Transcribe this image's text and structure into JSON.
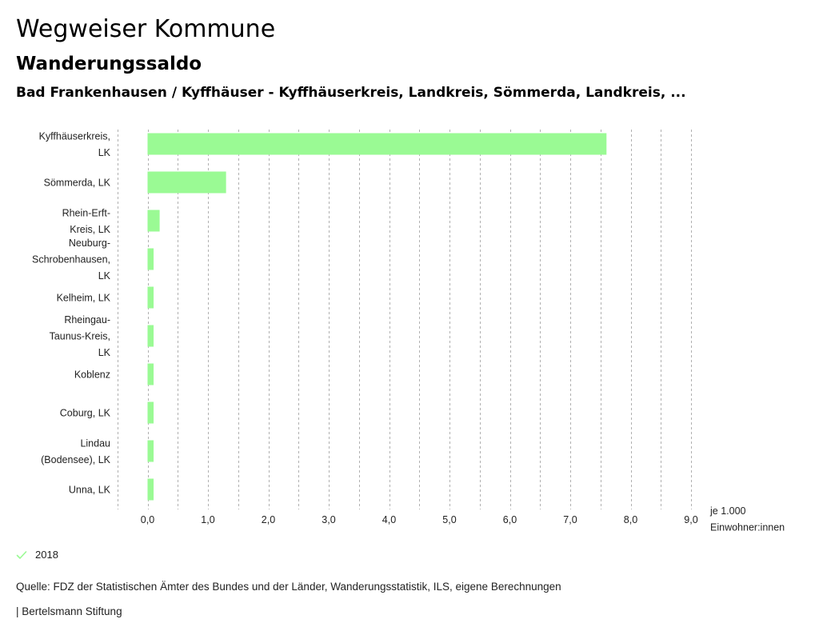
{
  "header": {
    "title": "Wegweiser Kommune",
    "subtitle": "Wanderungssaldo",
    "region": "Bad Frankenhausen / Kyffhäuser - Kyffhäuserkreis, Landkreis, Sömmerda, Landkreis, ..."
  },
  "colors": {
    "bar": "#9afa94",
    "grid": "#b0b0b0",
    "check": "#9afa94"
  },
  "chart_data": {
    "type": "bar",
    "orientation": "horizontal",
    "title": "Wanderungssaldo",
    "categories": [
      [
        "Kyffhäuserkreis,",
        "LK"
      ],
      [
        "Sömmerda, LK"
      ],
      [
        "Rhein-Erft-",
        "Kreis, LK"
      ],
      [
        "Neuburg-",
        "Schrobenhausen,",
        "LK"
      ],
      [
        "Kelheim, LK"
      ],
      [
        "Rheingau-",
        "Taunus-Kreis,",
        "LK"
      ],
      [
        "Koblenz"
      ],
      [
        "Coburg, LK"
      ],
      [
        "Lindau",
        "(Bodensee), LK"
      ],
      [
        "Unna, LK"
      ]
    ],
    "series": [
      {
        "name": "2018",
        "values": [
          7.6,
          1.3,
          0.2,
          0.1,
          0.1,
          0.1,
          0.1,
          0.1,
          0.1,
          0.1
        ]
      }
    ],
    "xlim": [
      -0.5,
      9.0
    ],
    "xticks": [
      0,
      1,
      2,
      3,
      4,
      5,
      6,
      7,
      8,
      9
    ],
    "xtick_labels": [
      "0,0",
      "1,0",
      "2,0",
      "3,0",
      "4,0",
      "5,0",
      "6,0",
      "7,0",
      "8,0",
      "9,0"
    ],
    "grid_step": 0.5,
    "grid": true,
    "xlabel": [
      "je 1.000",
      "Einwohner:innen"
    ],
    "ylabel": "",
    "legend_position": "bottom-left"
  },
  "legend": {
    "items": [
      {
        "label": "2018",
        "icon": "check-icon"
      }
    ]
  },
  "footer": {
    "source": "Quelle: FDZ der Statistischen Ämter des Bundes und der Länder, Wanderungsstatistik, ILS, eigene Berechnungen",
    "credit": "| Bertelsmann Stiftung"
  }
}
